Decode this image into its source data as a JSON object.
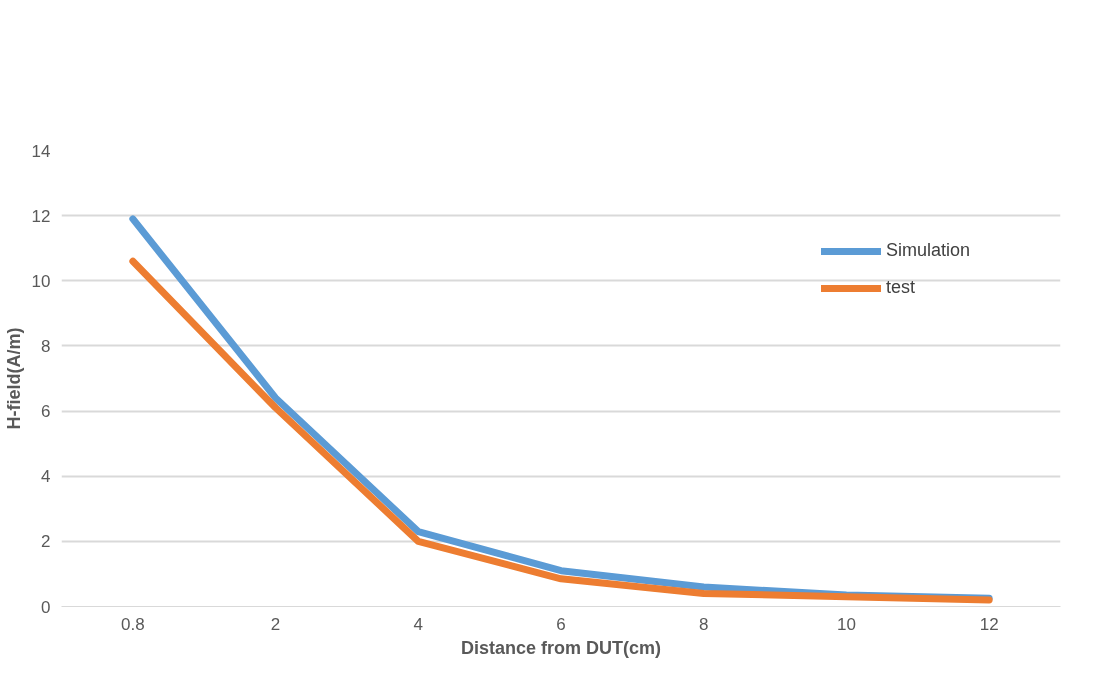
{
  "chart_data": {
    "type": "line",
    "xlabel": "Distance from DUT(cm)",
    "ylabel": "H-field(A/m)",
    "categories": [
      "0.8",
      "2",
      "4",
      "6",
      "8",
      "10",
      "12"
    ],
    "series": [
      {
        "name": "Simulation",
        "color": "#5b9bd5",
        "values": [
          11.9,
          6.4,
          2.3,
          1.1,
          0.6,
          0.35,
          0.25
        ]
      },
      {
        "name": "test",
        "color": "#ed7d31",
        "values": [
          10.6,
          6.1,
          2.0,
          0.85,
          0.4,
          0.3,
          0.2
        ]
      }
    ],
    "ylim": [
      0,
      14
    ],
    "yticks": [
      0,
      2,
      4,
      6,
      8,
      10,
      12,
      14
    ],
    "grid": "y",
    "legend": "top right",
    "marker": "none",
    "line_style": "solid"
  }
}
